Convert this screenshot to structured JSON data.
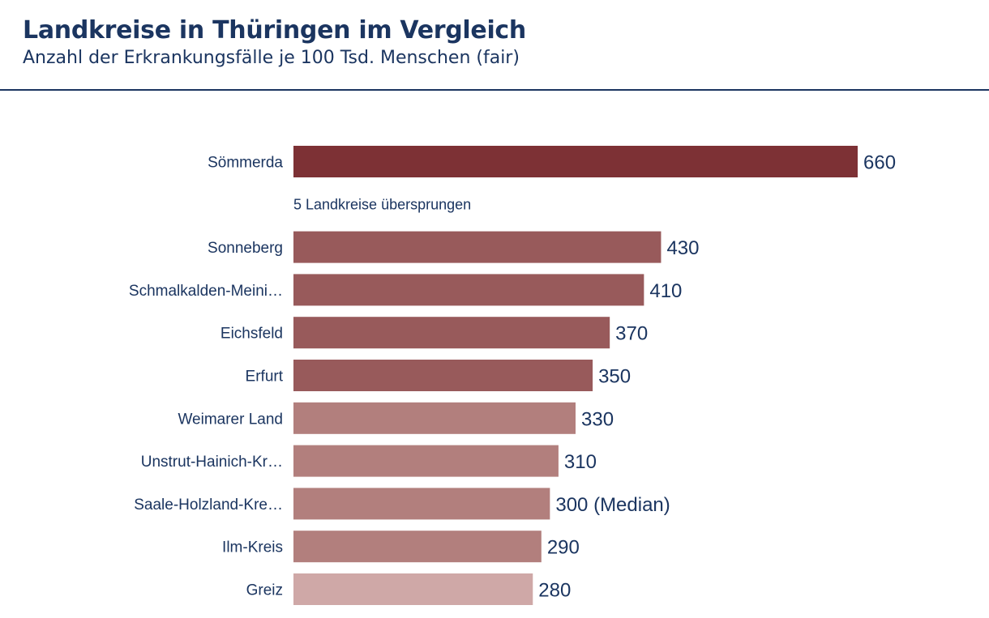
{
  "header": {
    "title": "Landkreise in Thüringen im Vergleich",
    "subtitle": "Anzahl der Erkrankungsfälle je 100 Tsd. Menschen (fair)"
  },
  "chart_data": {
    "type": "bar",
    "orientation": "horizontal",
    "title": "Landkreise in Thüringen im Vergleich",
    "subtitle": "Anzahl der Erkrankungsfälle je 100 Tsd. Menschen (fair)",
    "xlabel": "",
    "ylabel": "",
    "xlim": [
      0,
      660
    ],
    "grid": false,
    "rows": [
      {
        "category": "Sömmerda",
        "value": 660,
        "label": "660",
        "color": "#7d3135"
      },
      {
        "skip_note": "5 Landkreise übersprungen"
      },
      {
        "category": "Sonneberg",
        "value": 430,
        "label": "430",
        "color": "#985a5b"
      },
      {
        "category": "Schmalkalden-Meini…",
        "value": 410,
        "label": "410",
        "color": "#985a5b"
      },
      {
        "category": "Eichsfeld",
        "value": 370,
        "label": "370",
        "color": "#985a5b"
      },
      {
        "category": "Erfurt",
        "value": 350,
        "label": "350",
        "color": "#985a5b"
      },
      {
        "category": "Weimarer Land",
        "value": 330,
        "label": "330",
        "color": "#b27f7d"
      },
      {
        "category": "Unstrut-Hainich-Kr…",
        "value": 310,
        "label": "310",
        "color": "#b27f7d"
      },
      {
        "category": "Saale-Holzland-Kre…",
        "value": 300,
        "label": "300 (Median)",
        "color": "#b27f7d"
      },
      {
        "category": "Ilm-Kreis",
        "value": 290,
        "label": "290",
        "color": "#b27f7d"
      },
      {
        "category": "Greiz",
        "value": 280,
        "label": "280",
        "color": "#cfa8a7"
      }
    ]
  }
}
